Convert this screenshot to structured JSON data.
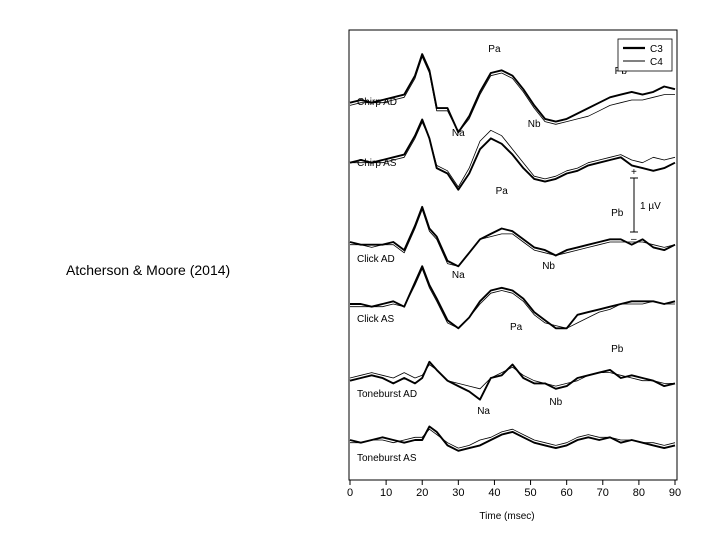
{
  "citation": "Atcherson & Moore (2014)",
  "chart_data": {
    "type": "line",
    "xlabel": "Time (msec)",
    "ylabel": "",
    "xlim": [
      0,
      90
    ],
    "x_ticks": [
      0,
      10,
      20,
      30,
      40,
      50,
      60,
      70,
      80,
      90
    ],
    "legend": {
      "placement": "top-right",
      "entries": [
        "C3",
        "C4"
      ]
    },
    "scale_bar": {
      "label": "1 µV",
      "plus": "+",
      "minus": "–",
      "value_uV": 1
    },
    "x": [
      0,
      3,
      6,
      9,
      12,
      15,
      18,
      20,
      22,
      24,
      27,
      30,
      33,
      36,
      39,
      42,
      45,
      48,
      51,
      54,
      57,
      60,
      63,
      66,
      69,
      72,
      75,
      78,
      81,
      84,
      87,
      90
    ],
    "panels": [
      {
        "label": "Chirp AD",
        "peak_labels": [
          {
            "text": "Pa",
            "x": 40
          },
          {
            "text": "Pb",
            "x": 75
          },
          {
            "text": "Na",
            "x": 30
          },
          {
            "text": "Nb",
            "x": 51
          }
        ],
        "series": [
          {
            "name": "C3",
            "values": [
              -0.05,
              0.0,
              -0.05,
              0.0,
              0.05,
              0.1,
              0.45,
              0.85,
              0.55,
              -0.15,
              -0.15,
              -0.6,
              -0.3,
              0.15,
              0.5,
              0.55,
              0.45,
              0.2,
              -0.1,
              -0.35,
              -0.4,
              -0.35,
              -0.25,
              -0.15,
              -0.05,
              0.05,
              0.1,
              0.15,
              0.1,
              0.15,
              0.25,
              0.2
            ]
          },
          {
            "name": "C4",
            "values": [
              -0.1,
              -0.05,
              -0.05,
              -0.05,
              0.0,
              0.05,
              0.4,
              0.8,
              0.5,
              -0.2,
              -0.2,
              -0.6,
              -0.35,
              0.1,
              0.45,
              0.5,
              0.4,
              0.15,
              -0.15,
              -0.4,
              -0.45,
              -0.4,
              -0.35,
              -0.3,
              -0.2,
              -0.1,
              -0.05,
              0.0,
              0.0,
              0.05,
              0.1,
              0.1
            ]
          }
        ]
      },
      {
        "label": "Chirp AS",
        "peak_labels": [],
        "series": [
          {
            "name": "C3",
            "values": [
              -0.05,
              0.0,
              -0.05,
              0.0,
              0.05,
              0.1,
              0.45,
              0.75,
              0.4,
              -0.15,
              -0.25,
              -0.55,
              -0.25,
              0.2,
              0.4,
              0.3,
              0.1,
              -0.15,
              -0.35,
              -0.4,
              -0.35,
              -0.25,
              -0.2,
              -0.1,
              -0.05,
              0.0,
              0.05,
              -0.1,
              -0.15,
              -0.2,
              -0.15,
              -0.05
            ]
          },
          {
            "name": "C4",
            "values": [
              -0.05,
              -0.05,
              -0.05,
              -0.05,
              0.0,
              0.05,
              0.4,
              0.7,
              0.4,
              -0.1,
              -0.2,
              -0.5,
              -0.15,
              0.35,
              0.55,
              0.45,
              0.2,
              -0.05,
              -0.3,
              -0.35,
              -0.3,
              -0.2,
              -0.15,
              -0.05,
              0.0,
              0.05,
              0.1,
              0.0,
              -0.05,
              0.05,
              0.0,
              0.05
            ]
          }
        ]
      },
      {
        "label": "Click AD",
        "peak_labels": [
          {
            "text": "Pa",
            "x": 42
          },
          {
            "text": "Pb",
            "x": 74
          },
          {
            "text": "Na",
            "x": 30
          },
          {
            "text": "Nb",
            "x": 55
          }
        ],
        "series": [
          {
            "name": "C3",
            "values": [
              0.0,
              -0.05,
              -0.05,
              -0.05,
              0.0,
              -0.15,
              0.3,
              0.65,
              0.25,
              0.1,
              -0.35,
              -0.45,
              -0.2,
              0.05,
              0.15,
              0.25,
              0.2,
              0.05,
              -0.1,
              -0.15,
              -0.25,
              -0.15,
              -0.1,
              -0.05,
              0.0,
              0.05,
              0.05,
              -0.05,
              0.05,
              -0.1,
              -0.15,
              -0.05
            ]
          },
          {
            "name": "C4",
            "values": [
              -0.05,
              -0.05,
              -0.1,
              -0.05,
              -0.05,
              -0.2,
              0.25,
              0.6,
              0.2,
              0.05,
              -0.4,
              -0.45,
              -0.2,
              0.05,
              0.1,
              0.15,
              0.15,
              0.0,
              -0.15,
              -0.2,
              -0.25,
              -0.2,
              -0.15,
              -0.1,
              -0.05,
              0.0,
              0.0,
              0.0,
              0.0,
              -0.05,
              -0.1,
              -0.05
            ]
          }
        ]
      },
      {
        "label": "Click AS",
        "peak_labels": [],
        "series": [
          {
            "name": "C3",
            "values": [
              0.0,
              0.0,
              -0.05,
              0.0,
              0.05,
              -0.05,
              0.4,
              0.7,
              0.35,
              0.1,
              -0.3,
              -0.45,
              -0.25,
              0.05,
              0.25,
              0.3,
              0.25,
              0.1,
              -0.15,
              -0.3,
              -0.45,
              -0.45,
              -0.2,
              -0.15,
              -0.1,
              -0.05,
              0.0,
              0.05,
              0.05,
              0.05,
              0.0,
              0.05
            ]
          },
          {
            "name": "C4",
            "values": [
              -0.05,
              -0.05,
              -0.05,
              -0.05,
              0.0,
              -0.05,
              0.35,
              0.65,
              0.3,
              0.05,
              -0.35,
              -0.45,
              -0.25,
              0.0,
              0.2,
              0.25,
              0.2,
              0.05,
              -0.2,
              -0.35,
              -0.4,
              -0.45,
              -0.35,
              -0.25,
              -0.15,
              -0.1,
              0.0,
              0.0,
              0.0,
              0.05,
              0.0,
              0.0
            ]
          }
        ]
      },
      {
        "label": "Toneburst AD",
        "peak_labels": [
          {
            "text": "Pa",
            "x": 46
          },
          {
            "text": "Pb",
            "x": 74
          },
          {
            "text": "Na",
            "x": 37
          },
          {
            "text": "Nb",
            "x": 57
          }
        ],
        "series": [
          {
            "name": "C3",
            "values": [
              -0.05,
              0.0,
              0.05,
              0.0,
              -0.1,
              0.0,
              -0.1,
              0.0,
              0.3,
              0.15,
              -0.05,
              -0.15,
              -0.25,
              -0.4,
              0.0,
              0.05,
              0.25,
              0.0,
              -0.1,
              -0.1,
              -0.2,
              -0.15,
              0.0,
              0.05,
              0.1,
              0.15,
              0.0,
              0.05,
              0.0,
              -0.05,
              -0.15,
              -0.1
            ]
          },
          {
            "name": "C4",
            "values": [
              0.0,
              0.05,
              0.1,
              0.05,
              0.0,
              0.1,
              0.0,
              0.05,
              0.25,
              0.15,
              -0.05,
              -0.1,
              -0.15,
              -0.2,
              0.0,
              0.1,
              0.2,
              0.05,
              -0.05,
              -0.1,
              -0.15,
              -0.1,
              -0.05,
              0.05,
              0.1,
              0.1,
              0.05,
              0.0,
              -0.05,
              -0.05,
              -0.1,
              -0.1
            ]
          }
        ]
      },
      {
        "label": "Toneburst AS",
        "peak_labels": [],
        "series": [
          {
            "name": "C3",
            "values": [
              0.0,
              -0.05,
              0.0,
              0.05,
              0.0,
              -0.05,
              0.0,
              0.0,
              0.25,
              0.15,
              -0.1,
              -0.2,
              -0.15,
              -0.1,
              0.0,
              0.1,
              0.15,
              0.05,
              -0.05,
              -0.1,
              -0.15,
              -0.1,
              0.0,
              0.05,
              0.0,
              0.05,
              -0.05,
              0.0,
              -0.05,
              -0.1,
              -0.15,
              -0.1
            ]
          },
          {
            "name": "C4",
            "values": [
              -0.05,
              -0.05,
              0.0,
              0.0,
              -0.05,
              0.0,
              0.05,
              0.05,
              0.2,
              0.1,
              -0.05,
              -0.15,
              -0.1,
              0.0,
              0.05,
              0.15,
              0.2,
              0.1,
              0.0,
              -0.05,
              -0.1,
              -0.05,
              0.05,
              0.1,
              0.05,
              0.05,
              0.0,
              0.0,
              -0.05,
              -0.05,
              -0.1,
              -0.05
            ]
          }
        ]
      }
    ]
  }
}
